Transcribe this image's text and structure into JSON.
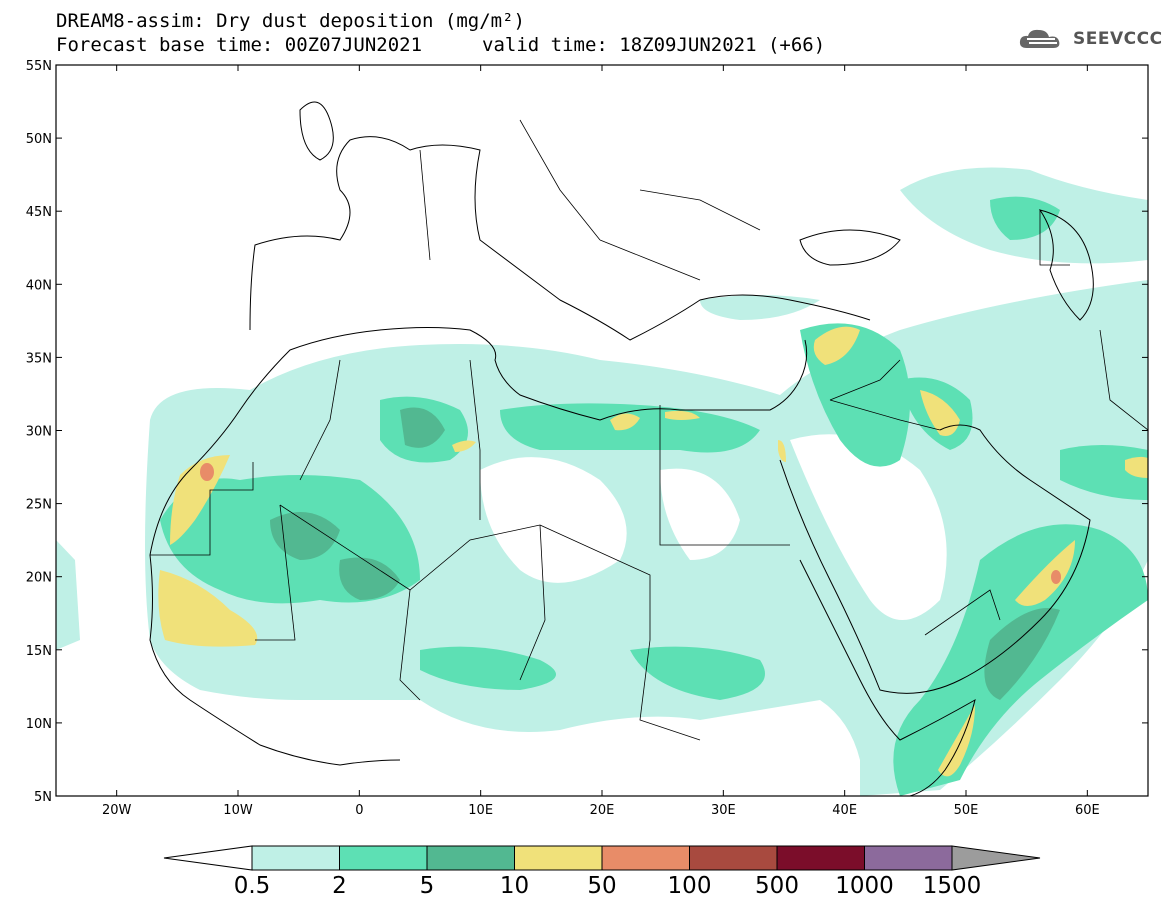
{
  "header": {
    "title_line1": "DREAM8-assim: Dry dust deposition (mg/m²)",
    "title_line2": "Forecast base time: 00Z07JUN2021",
    "valid_time": "valid time: 18Z09JUN2021 (+66)"
  },
  "logo": {
    "text": "SEEVCCC",
    "icon": "cloud-logo-icon"
  },
  "map": {
    "lon_range": [
      -25,
      65
    ],
    "lat_range": [
      5,
      55
    ],
    "lat_ticks": [
      "55N",
      "50N",
      "45N",
      "40N",
      "35N",
      "30N",
      "25N",
      "20N",
      "15N",
      "10N",
      "5N"
    ],
    "lon_ticks": [
      "20W",
      "10W",
      "0",
      "10E",
      "20E",
      "30E",
      "40E",
      "50E",
      "60E"
    ]
  },
  "colorbar": {
    "labels": [
      "0.5",
      "2",
      "5",
      "10",
      "50",
      "100",
      "500",
      "1000",
      "1500"
    ],
    "colors": [
      "#bff0e6",
      "#5de0b4",
      "#52b891",
      "#f0e17a",
      "#e88c68",
      "#a84a3f",
      "#7b0d2a",
      "#8c6a9c",
      "#9c9c9c"
    ]
  }
}
